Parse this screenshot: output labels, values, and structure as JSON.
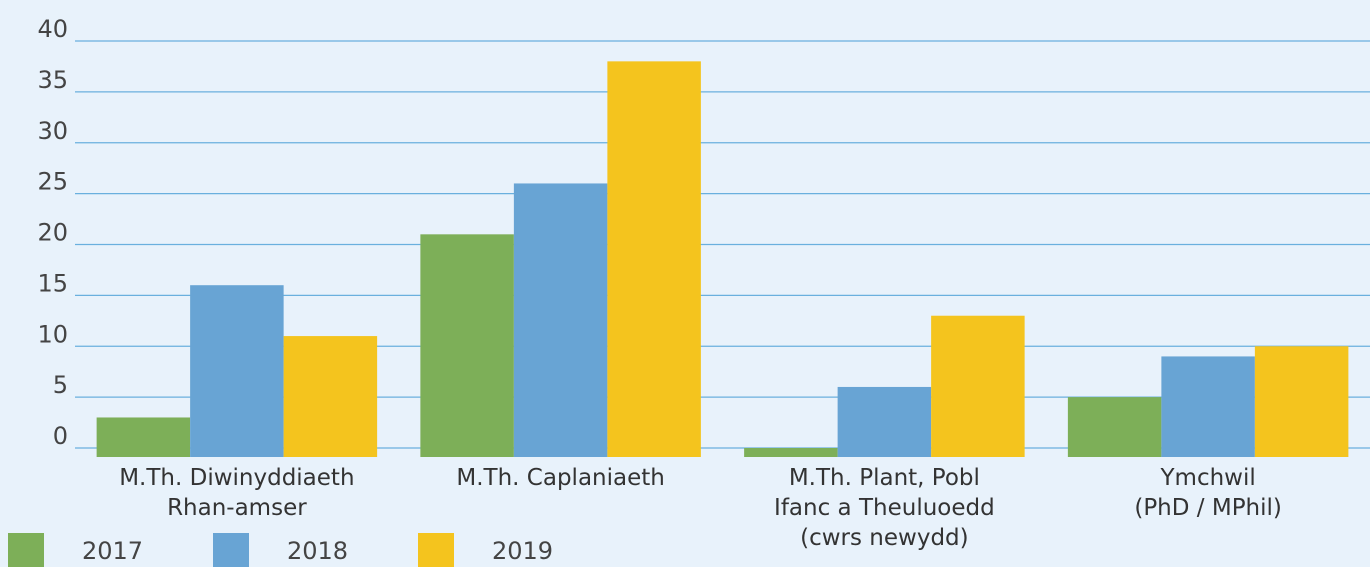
{
  "chart_data": {
    "type": "bar",
    "categories": [
      [
        "M.Th. Diwinyddiaeth",
        "Rhan-amser"
      ],
      [
        "M.Th. Caplaniaeth"
      ],
      [
        "M.Th. Plant, Pobl",
        "Ifanc a Theuluoedd",
        "(cwrs newydd)"
      ],
      [
        "Ymchwil",
        "(PhD / MPhil)"
      ]
    ],
    "series": [
      {
        "name": "2017",
        "color": "#7daf58",
        "values": [
          3,
          21,
          0,
          5
        ]
      },
      {
        "name": "2018",
        "color": "#68a4d4",
        "values": [
          16,
          26,
          6,
          9
        ]
      },
      {
        "name": "2019",
        "color": "#f4c41e",
        "values": [
          11,
          38,
          13,
          10
        ]
      }
    ],
    "ylim": [
      0,
      40
    ],
    "yticks": [
      0,
      5,
      10,
      15,
      20,
      25,
      30,
      35,
      40
    ],
    "grid": true,
    "legend": "bottom-left"
  }
}
